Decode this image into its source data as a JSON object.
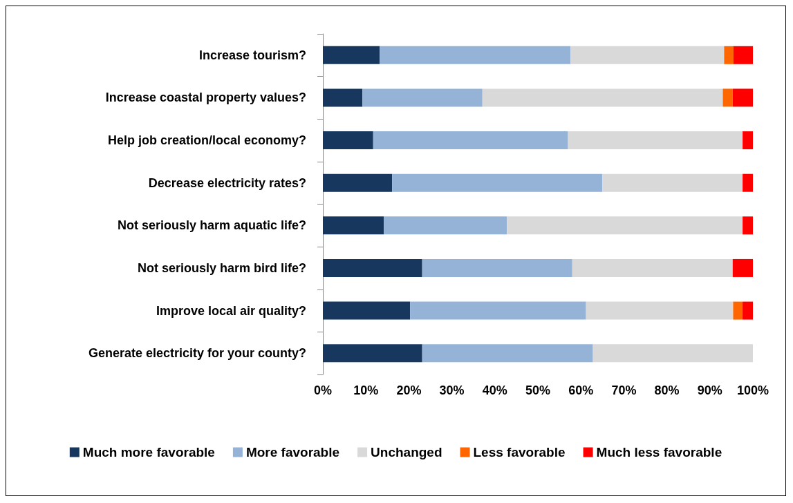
{
  "chart_data": {
    "type": "bar",
    "orientation": "horizontal",
    "stacked": true,
    "categories": [
      "Increase tourism?",
      "Increase coastal property values?",
      "Help job creation/local economy?",
      "Decrease electricity rates?",
      "Not seriously harm aquatic life?",
      "Not seriously harm bird life?",
      "Improve local air quality?",
      "Generate electricity for your county?"
    ],
    "series": [
      {
        "name": "Much more favorable",
        "color": "#17375e",
        "values": [
          13.2,
          9.2,
          11.7,
          16.1,
          14.2,
          23.1,
          20.3,
          23.1
        ]
      },
      {
        "name": "More favorable",
        "color": "#95b3d7",
        "values": [
          44.4,
          27.9,
          45.3,
          48.9,
          28.6,
          34.9,
          40.9,
          39.7
        ]
      },
      {
        "name": "Unchanged",
        "color": "#d9d9d9",
        "values": [
          35.7,
          55.9,
          40.6,
          32.6,
          54.8,
          37.3,
          34.2,
          37.2
        ]
      },
      {
        "name": "Less favorable",
        "color": "#ff6600",
        "values": [
          2.2,
          2.3,
          0,
          0,
          0,
          0,
          2.2,
          0
        ]
      },
      {
        "name": "Much less favorable",
        "color": "#ff0000",
        "values": [
          4.5,
          4.7,
          2.4,
          2.4,
          2.4,
          4.7,
          2.4,
          0
        ]
      }
    ],
    "xlim": [
      0,
      100
    ],
    "xticks": [
      {
        "value": 0,
        "label": "0%"
      },
      {
        "value": 10,
        "label": "10%"
      },
      {
        "value": 20,
        "label": "20%"
      },
      {
        "value": 30,
        "label": "30%"
      },
      {
        "value": 40,
        "label": "40%"
      },
      {
        "value": 50,
        "label": "50%"
      },
      {
        "value": 60,
        "label": "60%"
      },
      {
        "value": 70,
        "label": "70%"
      },
      {
        "value": 80,
        "label": "80%"
      },
      {
        "value": 90,
        "label": "90%"
      },
      {
        "value": 100,
        "label": "100%"
      }
    ],
    "grid": false,
    "legend": "bottom"
  }
}
